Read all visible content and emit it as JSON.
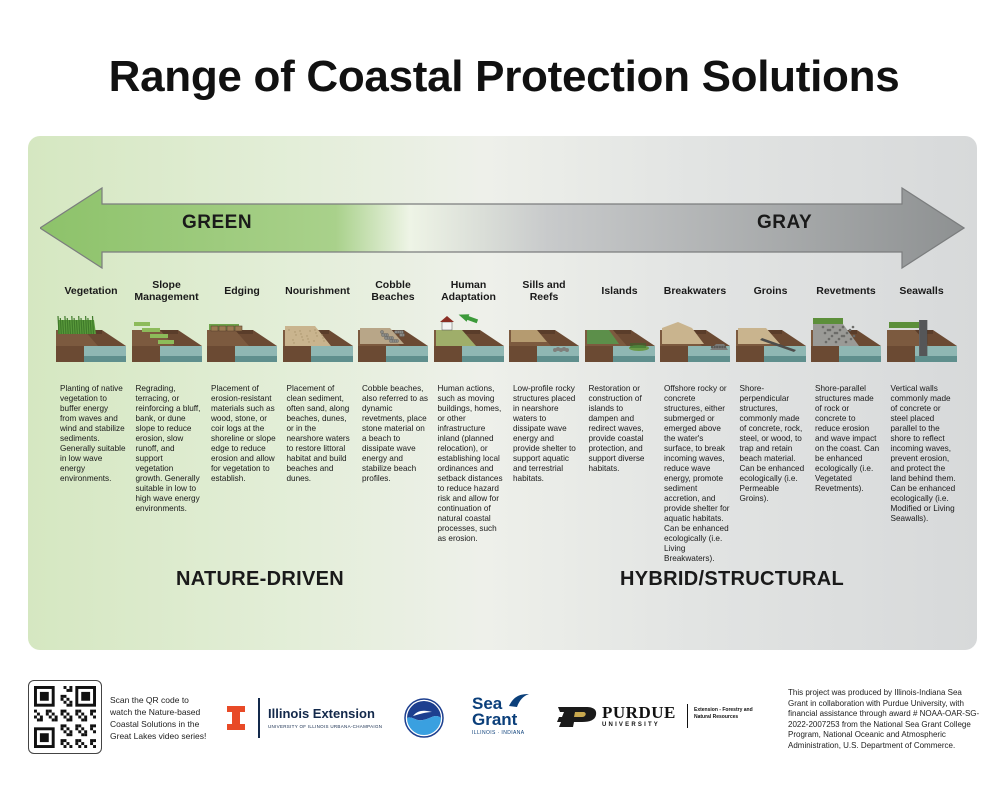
{
  "title": "Range of Coastal Protection Solutions",
  "spectrum": {
    "left_label": "GREEN",
    "right_label": "GRAY",
    "colors": {
      "green": "#8dc26a",
      "gray": "#8e9192"
    }
  },
  "solutions": [
    {
      "title": "Vegetation",
      "illustration": "vegetation-shore-icon",
      "description": "Planting of native vegetation to buffer energy from waves and wind and stabilize sediments. Generally suitable in low wave energy environments."
    },
    {
      "title": "Slope Management",
      "illustration": "terraced-slope-icon",
      "description": "Regrading, terracing, or reinforcing a bluff, bank, or dune slope to reduce erosion, slow runoff, and support vegetation growth. Generally suitable in low to high wave energy environments."
    },
    {
      "title": "Edging",
      "illustration": "edging-shore-icon",
      "description": "Placement of erosion-resistant materials such as wood, stone, or coir logs at the shoreline or slope edge to reduce erosion and allow for vegetation to establish."
    },
    {
      "title": "Nourishment",
      "illustration": "sand-nourishment-icon",
      "description": "Placement of clean sediment, often sand, along beaches, dunes, or in the nearshore waters to restore littoral habitat and build beaches and dunes."
    },
    {
      "title": "Cobble Beaches",
      "illustration": "cobble-beach-icon",
      "description": "Cobble beaches, also referred to as dynamic revetments, place stone material on a beach to dissipate wave energy and stabilize beach profiles."
    },
    {
      "title": "Human Adaptation",
      "illustration": "house-retreat-icon",
      "description": "Human actions, such as moving buildings, homes, or other infrastructure inland (planned relocation), or establishing local ordinances and setback distances to reduce hazard risk and allow for continuation of natural coastal processes, such as erosion."
    },
    {
      "title": "Sills and Reefs",
      "illustration": "sill-reef-icon",
      "description": "Low-profile rocky structures placed in nearshore waters to dissipate wave energy and provide shelter to support aquatic and terrestrial habitats."
    },
    {
      "title": "Islands",
      "illustration": "island-icon",
      "description": "Restoration or construction of islands to dampen and redirect waves, provide coastal protection, and support diverse habitats."
    },
    {
      "title": "Breakwaters",
      "illustration": "breakwater-icon",
      "description": "Offshore rocky or concrete structures, either submerged or emerged above the water's surface, to break incoming waves, reduce wave energy, promote sediment accretion, and provide shelter for aquatic habitats. Can be enhanced ecologically (i.e. Living Breakwaters)."
    },
    {
      "title": "Groins",
      "illustration": "groin-icon",
      "description": "Shore-perpendicular structures, commonly made of concrete, rock, steel, or wood, to trap and retain beach material. Can be enhanced ecologically (i.e. Permeable Groins)."
    },
    {
      "title": "Revetments",
      "illustration": "revetment-icon",
      "description": "Shore-parallel structures made of rock or concrete to reduce erosion and wave impact on the coast. Can be enhanced ecologically (i.e. Vegetated Revetments)."
    },
    {
      "title": "Seawalls",
      "illustration": "seawall-icon",
      "description": "Vertical walls commonly made of concrete or steel placed parallel to the shore to reflect incoming waves, prevent erosion, and protect the land behind them. Can be enhanced ecologically (i.e. Modified or Living Seawalls)."
    }
  ],
  "bottom_labels": {
    "left": "NATURE-DRIVEN",
    "right": "HYBRID/STRUCTURAL"
  },
  "footer": {
    "qr_text": "Scan the QR code to watch the Nature-based Coastal Solutions in the Great Lakes video series!",
    "illinois": {
      "name": "Illinois Extension",
      "sub": "UNIVERSITY OF ILLINOIS URBANA-CHAMPAIGN"
    },
    "seagrant": {
      "line1": "Sea",
      "line2": "Grant",
      "sub": "ILLINOIS · INDIANA"
    },
    "purdue": {
      "name": "PURDUE",
      "sub": "UNIVERSITY",
      "dept": "Extension - Forestry and Natural Resources"
    },
    "credit": "This project was produced by Illinois-Indiana Sea Grant in collaboration with Purdue University, with financial assistance through award # NOAA-OAR-SG-2022-2007253 from the National Sea Grant College Program, National Oceanic and Atmospheric Administration, U.S. Department of Commerce."
  }
}
